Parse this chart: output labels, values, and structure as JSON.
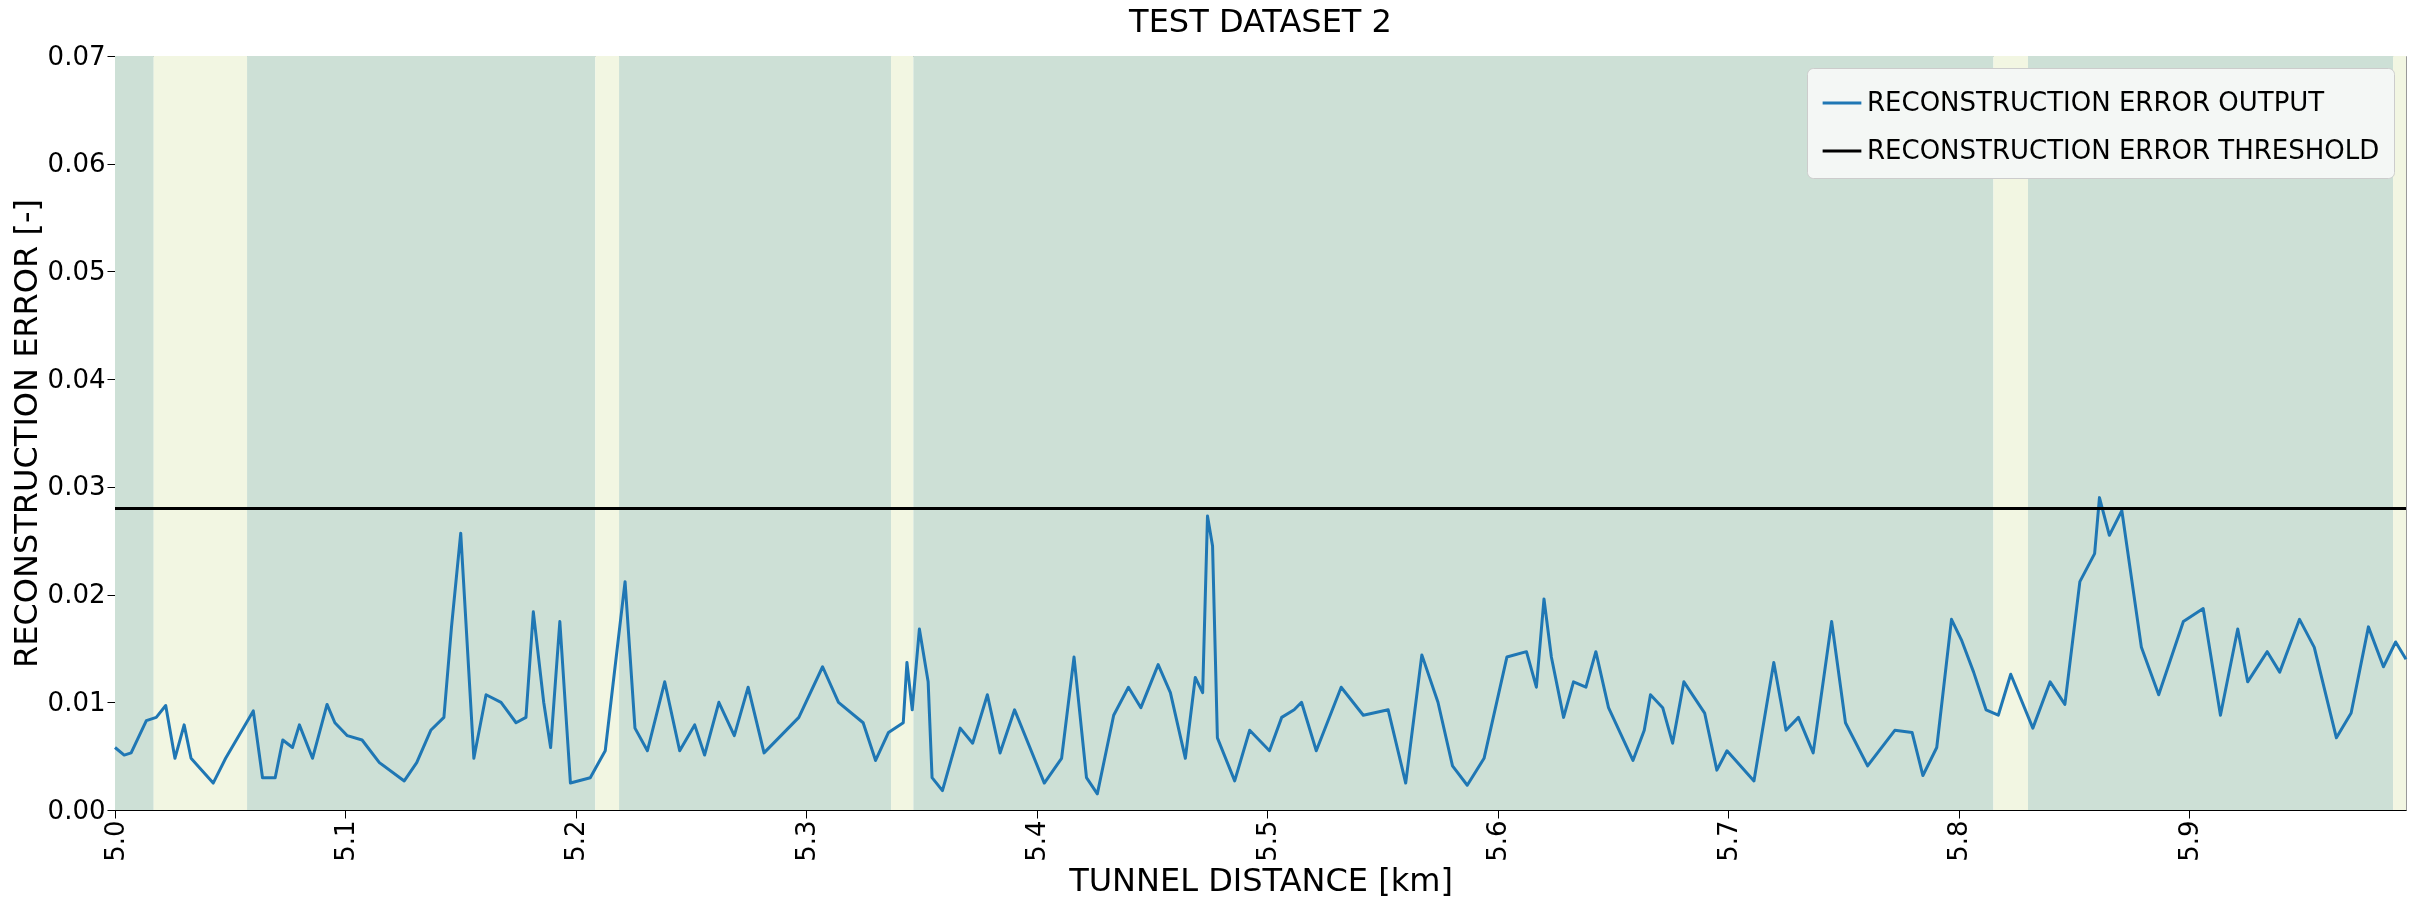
{
  "chart_data": {
    "type": "line",
    "title": "TEST DATASET 2",
    "xlabel": "TUNNEL DISTANCE [km]",
    "ylabel": "RECONSTRUCTION ERROR [-]",
    "xlim": [
      5.0,
      5.994
    ],
    "xticks": [
      {
        "value": 5.0,
        "label": "5.0"
      },
      5.1,
      5.2,
      5.3,
      5.4,
      5.5,
      5.6,
      5.7,
      5.8,
      5.9
    ],
    "ylim": [
      0,
      0.07
    ],
    "yticks": [
      {
        "value": 0,
        "label": "0.00"
      },
      {
        "value": 0.01,
        "label": "0.01"
      },
      {
        "value": 0.02,
        "label": "0.02"
      },
      {
        "value": 0.03,
        "label": "0.03"
      },
      {
        "value": 0.04,
        "label": "0.04"
      },
      {
        "value": 0.05,
        "label": "0.05"
      },
      {
        "value": 0.06,
        "label": "0.06"
      },
      {
        "value": 0.07,
        "label": "0.07"
      }
    ],
    "grid": false,
    "legend": "top right",
    "line_style": "solid",
    "marker": "none",
    "bands": [
      {
        "axis": "x",
        "from": 5.0,
        "to": 5.0168,
        "color": "#cde0d6"
      },
      {
        "axis": "x",
        "from": 5.0168,
        "to": 5.0573,
        "color": "#f2f6e2"
      },
      {
        "axis": "x",
        "from": 5.0573,
        "to": 5.2084,
        "color": "#cde0d6"
      },
      {
        "axis": "x",
        "from": 5.2084,
        "to": 5.2187,
        "color": "#f2f6e2"
      },
      {
        "axis": "x",
        "from": 5.2187,
        "to": 5.3367,
        "color": "#cde0d6"
      },
      {
        "axis": "x",
        "from": 5.3367,
        "to": 5.3464,
        "color": "#f2f6e2"
      },
      {
        "axis": "x",
        "from": 5.3464,
        "to": 5.815,
        "color": "#cde0d6"
      },
      {
        "axis": "x",
        "from": 5.815,
        "to": 5.83,
        "color": "#f2f6e2"
      },
      {
        "axis": "x",
        "from": 5.83,
        "to": 5.9884,
        "color": "#cde0d6"
      },
      {
        "axis": "x",
        "from": 5.9884,
        "to": 5.994,
        "color": "#f2f6e2"
      }
    ],
    "series": [
      {
        "name": "RECONSTRUCTION ERROR OUTPUT",
        "color": "#1f77b4",
        "x": [
          5.0,
          5.004,
          5.007,
          5.0136,
          5.0179,
          5.022,
          5.026,
          5.03,
          5.033,
          5.0426,
          5.048,
          5.06,
          5.064,
          5.0695,
          5.0728,
          5.077,
          5.08,
          5.0857,
          5.092,
          5.0954,
          5.1008,
          5.1072,
          5.1147,
          5.1255,
          5.1309,
          5.137,
          5.1427,
          5.146,
          5.15,
          5.1557,
          5.161,
          5.1675,
          5.174,
          5.1783,
          5.1815,
          5.186,
          5.189,
          5.193,
          5.1976,
          5.2062,
          5.2127,
          5.2213,
          5.2256,
          5.231,
          5.2385,
          5.245,
          5.2515,
          5.2558,
          5.262,
          5.2687,
          5.2747,
          5.2816,
          5.2967,
          5.307,
          5.3139,
          5.3246,
          5.33,
          5.3356,
          5.342,
          5.3436,
          5.3459,
          5.349,
          5.3528,
          5.3545,
          5.359,
          5.3667,
          5.3721,
          5.3785,
          5.384,
          5.3903,
          5.4032,
          5.4107,
          5.4161,
          5.4215,
          5.4262,
          5.4333,
          5.4397,
          5.4451,
          5.4526,
          5.4579,
          5.4644,
          5.4687,
          5.4719,
          5.474,
          5.4762,
          5.4783,
          5.4858,
          5.4923,
          5.5009,
          5.5062,
          5.5116,
          5.5148,
          5.5212,
          5.532,
          5.5416,
          5.5524,
          5.56,
          5.567,
          5.574,
          5.5803,
          5.5867,
          5.594,
          5.6039,
          5.6124,
          5.6167,
          5.62,
          5.6232,
          5.6285,
          5.6328,
          5.6382,
          5.6425,
          5.648,
          5.6586,
          5.6635,
          5.6662,
          5.6715,
          5.6758,
          5.6807,
          5.6897,
          5.695,
          5.6994,
          5.7111,
          5.7197,
          5.725,
          5.7304,
          5.7368,
          5.7448,
          5.7508,
          5.7604,
          5.7722,
          5.7797,
          5.7844,
          5.7904,
          5.7968,
          5.8011,
          5.8064,
          5.8118,
          5.8171,
          5.8225,
          5.8321,
          5.8396,
          5.846,
          5.8525,
          5.8589,
          5.861,
          5.8653,
          5.8707,
          5.8792,
          5.8867,
          5.8974,
          5.906,
          5.9135,
          5.921,
          5.9253,
          5.9338,
          5.9392,
          5.9478,
          5.9542,
          5.9638,
          5.9702,
          5.9777,
          5.9842,
          5.9895,
          5.994
        ],
        "values": [
          0.0058,
          0.0051,
          0.0053,
          0.0083,
          0.0086,
          0.0097,
          0.0048,
          0.0079,
          0.0048,
          0.0025,
          0.0048,
          0.0092,
          0.003,
          0.003,
          0.0065,
          0.0058,
          0.0079,
          0.0048,
          0.0098,
          0.0081,
          0.0069,
          0.0065,
          0.0044,
          0.0027,
          0.0044,
          0.0074,
          0.0086,
          0.017,
          0.0257,
          0.0048,
          0.0107,
          0.01,
          0.0081,
          0.0086,
          0.0184,
          0.01,
          0.0058,
          0.0175,
          0.0025,
          0.003,
          0.0055,
          0.0212,
          0.0076,
          0.0055,
          0.0119,
          0.0055,
          0.0079,
          0.0051,
          0.01,
          0.0069,
          0.0114,
          0.0053,
          0.0086,
          0.0133,
          0.01,
          0.0081,
          0.0046,
          0.0072,
          0.0081,
          0.0137,
          0.0093,
          0.0168,
          0.0119,
          0.003,
          0.0018,
          0.0076,
          0.0062,
          0.0107,
          0.0053,
          0.0093,
          0.0025,
          0.0048,
          0.0142,
          0.003,
          0.0015,
          0.0088,
          0.0114,
          0.0095,
          0.0135,
          0.0109,
          0.0048,
          0.0123,
          0.0109,
          0.0273,
          0.0245,
          0.0067,
          0.0027,
          0.0074,
          0.0055,
          0.0086,
          0.0093,
          0.01,
          0.0055,
          0.0114,
          0.0088,
          0.0093,
          0.0025,
          0.0144,
          0.01,
          0.0041,
          0.0023,
          0.0048,
          0.0142,
          0.0147,
          0.0114,
          0.0196,
          0.0142,
          0.0086,
          0.0119,
          0.0114,
          0.0147,
          0.0095,
          0.0046,
          0.0074,
          0.0107,
          0.0095,
          0.0062,
          0.0119,
          0.009,
          0.0037,
          0.0055,
          0.0027,
          0.0137,
          0.0074,
          0.0086,
          0.0053,
          0.0175,
          0.0081,
          0.0041,
          0.0074,
          0.0072,
          0.0032,
          0.0058,
          0.0177,
          0.0158,
          0.0128,
          0.0093,
          0.0088,
          0.0126,
          0.0076,
          0.0119,
          0.0098,
          0.0212,
          0.0238,
          0.029,
          0.0255,
          0.0278,
          0.0151,
          0.0107,
          0.0175,
          0.0187,
          0.0088,
          0.0168,
          0.0119,
          0.0147,
          0.0128,
          0.0177,
          0.0151,
          0.0067,
          0.009,
          0.017,
          0.0133,
          0.0156,
          0.014
        ]
      },
      {
        "name": "RECONSTRUCTION ERROR THRESHOLD",
        "color": "#000000",
        "x": [
          5.0,
          5.994
        ],
        "values": [
          0.028,
          0.028
        ]
      }
    ]
  }
}
